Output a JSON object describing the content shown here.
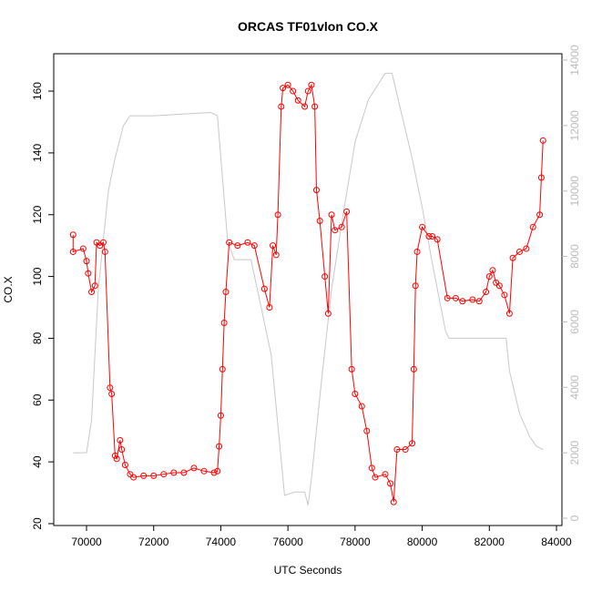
{
  "chart_data": {
    "type": "line",
    "title": "ORCAS TF01vlon CO.X",
    "x_label": "UTC Seconds",
    "y_label": "CO.X",
    "xlim": [
      69023,
      84163
    ],
    "ylim": [
      19.4,
      172.1
    ],
    "y2lim": [
      -223,
      14195
    ],
    "xticks": [
      70000,
      72000,
      74000,
      76000,
      78000,
      80000,
      82000,
      84000
    ],
    "yticks": [
      20,
      40,
      60,
      80,
      100,
      120,
      140,
      160
    ],
    "y2ticks": [
      0,
      2000,
      4000,
      6000,
      8000,
      10000,
      12000,
      14000
    ],
    "series": [
      {
        "color": "#ff0000",
        "markers": true,
        "x": [
          69600,
          69600,
          69900,
          70000,
          70050,
          70150,
          70250,
          70300,
          70400,
          70500,
          70550,
          70700,
          70750,
          70850,
          70900,
          71000,
          71050,
          71150,
          71300,
          71400,
          71700,
          72000,
          72300,
          72600,
          72900,
          73200,
          73500,
          73800,
          73900,
          73950,
          74000,
          74050,
          74100,
          74150,
          74250,
          74500,
          74800,
          75000,
          75300,
          75450,
          75550,
          75650,
          75700,
          75800,
          75850,
          76000,
          76150,
          76300,
          76500,
          76600,
          76700,
          76800,
          76850,
          76950,
          77100,
          77200,
          77300,
          77400,
          77600,
          77750,
          77900,
          78000,
          78200,
          78350,
          78500,
          78600,
          78900,
          79050,
          79150,
          79250,
          79500,
          79700,
          79750,
          79800,
          79850,
          80000,
          80200,
          80300,
          80450,
          80750,
          81000,
          81200,
          81500,
          81700,
          81900,
          82000,
          82100,
          82200,
          82300,
          82450,
          82600,
          82700,
          82900,
          83100,
          83300,
          83500,
          83550,
          83600
        ],
        "values": [
          113.5,
          108,
          109,
          105,
          101,
          95,
          97,
          111,
          110,
          111,
          108,
          64,
          62,
          42,
          41,
          47,
          44,
          39,
          36,
          35,
          35.5,
          35.5,
          36,
          36.5,
          36.5,
          38,
          37,
          36.5,
          37,
          45,
          55,
          70,
          85,
          95,
          111,
          110,
          111,
          110,
          96,
          90,
          110,
          107,
          120,
          155,
          161,
          162,
          160,
          157,
          155,
          160,
          162,
          155,
          128,
          118,
          100,
          88,
          120,
          115,
          116,
          121,
          70,
          62,
          58,
          50,
          38,
          35,
          36,
          33,
          27,
          44,
          44,
          46,
          70,
          97,
          108,
          116,
          113,
          113,
          112,
          93,
          93,
          92,
          92.5,
          92,
          95,
          100,
          102,
          98,
          97,
          94,
          88,
          106,
          108,
          109,
          116,
          120,
          132,
          144
        ]
      },
      {
        "color": "#c8c8c8",
        "axis": "y2",
        "markers": false,
        "x": [
          69600,
          70000,
          70150,
          70350,
          70650,
          70850,
          71100,
          71300,
          72000,
          73700,
          73900,
          74200,
          74400,
          74900,
          75500,
          75900,
          76200,
          76500,
          76600,
          76700,
          77000,
          77300,
          77600,
          78000,
          78400,
          78900,
          79100,
          79400,
          79700,
          80000,
          80300,
          80700,
          80800,
          81000,
          82500,
          82600,
          82900,
          83200,
          83400,
          83600
        ],
        "values": [
          2000,
          2000,
          3000,
          7000,
          10000,
          11000,
          12000,
          12300,
          12300,
          12400,
          12300,
          8500,
          7900,
          7900,
          5000,
          700,
          800,
          800,
          400,
          1200,
          4200,
          7000,
          9000,
          11500,
          12800,
          13600,
          13600,
          12300,
          11000,
          9500,
          7800,
          5700,
          5500,
          5500,
          5500,
          4500,
          3200,
          2500,
          2200,
          2100
        ]
      }
    ]
  }
}
